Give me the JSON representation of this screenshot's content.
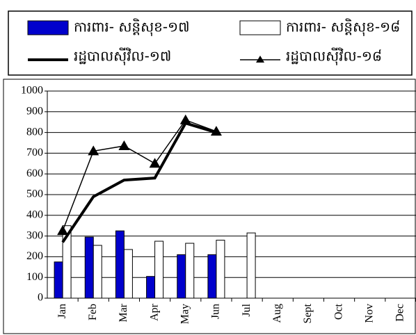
{
  "chart_data": {
    "type": "bar_line",
    "categories": [
      "Jan",
      "Feb",
      "Mar",
      "Apr",
      "May",
      "Jun",
      "Jul",
      "Aug",
      "Sept",
      "Oct",
      "Nov",
      "Dec"
    ],
    "series": [
      {
        "name": "ការពារ- សន្តិសុខ-១៧",
        "kind": "bar",
        "color": "#0000cc",
        "values": [
          175,
          295,
          325,
          105,
          210,
          210,
          null,
          null,
          null,
          null,
          null,
          null
        ]
      },
      {
        "name": "ការពារ- សន្តិសុខ-១៨",
        "kind": "bar",
        "color": "#ffffff",
        "values": [
          350,
          255,
          235,
          275,
          265,
          280,
          315,
          null,
          null,
          null,
          null,
          null
        ]
      },
      {
        "name": "រដ្ឋបាលស៊ីវិល-១៧",
        "kind": "line",
        "color": "#000000",
        "values": [
          270,
          490,
          570,
          580,
          845,
          800,
          null,
          null,
          null,
          null,
          null,
          null
        ]
      },
      {
        "name": "រដ្ឋបាលស៊ីវិល-១៨",
        "kind": "line-marker",
        "color": "#000000",
        "values": [
          325,
          710,
          735,
          650,
          860,
          805,
          null,
          null,
          null,
          null,
          null,
          null
        ]
      }
    ],
    "ylim": [
      0,
      1000
    ],
    "yticks": [
      0,
      100,
      200,
      300,
      400,
      500,
      600,
      700,
      800,
      900,
      1000
    ],
    "grid": true
  }
}
